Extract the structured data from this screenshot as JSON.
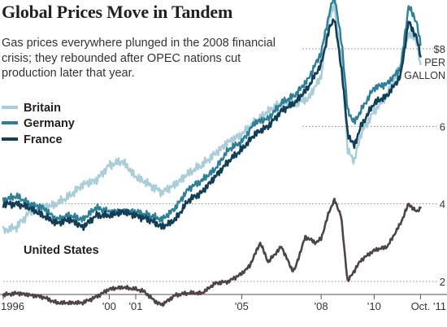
{
  "title": "Global Prices Move in Tandem",
  "subtitle": "Gas prices everywhere plunged in the 2008 financial crisis; they rebounded after OPEC nations cut production later that year.",
  "colors": {
    "britain": "#a9cdd9",
    "germany": "#2f8097",
    "france": "#123f58",
    "united_states": "#4e4446",
    "grid": "#888888",
    "axis": "#555555",
    "text": "#333333"
  },
  "chart_data": {
    "type": "line",
    "title": "Global Prices Move in Tandem",
    "subtitle": "Gas prices everywhere plunged in the 2008 financial crisis; they rebounded after OPEC nations cut production later that year.",
    "x_unit": "year",
    "xlim": [
      1996.0,
      2011.83
    ],
    "ylim": [
      1.0,
      9.5
    ],
    "y_unit": "$ per gallon",
    "y_ticks": [
      2,
      4,
      6,
      8
    ],
    "y_tick_labels": [
      "2",
      "4",
      "6",
      "$8"
    ],
    "y_unit_label": [
      "PER",
      "GALLON"
    ],
    "x_ticks": [
      1996,
      2000,
      2001,
      2005,
      2008,
      2010,
      2011.75
    ],
    "x_tick_labels": [
      "1996",
      "'00",
      "'01",
      "'05",
      "'08",
      "'10",
      "Oct. '11"
    ],
    "grid": "dotted horizontal lines at y ticks",
    "legend": "top-left",
    "series": [
      {
        "name": "Britain",
        "color": "#a9cdd9",
        "x": [
          1996.0,
          1996.5,
          1997.0,
          1997.5,
          1998.0,
          1998.5,
          1999.0,
          1999.5,
          2000.0,
          2000.5,
          2001.0,
          2001.5,
          2002.0,
          2002.5,
          2003.0,
          2003.5,
          2004.0,
          2004.5,
          2005.0,
          2005.5,
          2006.0,
          2006.5,
          2007.0,
          2007.5,
          2008.0,
          2008.3,
          2008.5,
          2008.8,
          2009.0,
          2009.25,
          2009.5,
          2010.0,
          2010.5,
          2011.0,
          2011.3,
          2011.6,
          2011.75
        ],
        "y": [
          3.3,
          3.4,
          3.8,
          3.9,
          4.0,
          4.2,
          4.5,
          4.6,
          5.0,
          5.1,
          4.7,
          4.5,
          4.3,
          4.5,
          4.8,
          5.0,
          5.3,
          5.6,
          5.8,
          6.1,
          6.4,
          6.6,
          6.6,
          6.7,
          7.3,
          8.8,
          9.1,
          7.5,
          5.4,
          5.1,
          5.8,
          6.4,
          6.8,
          7.6,
          8.4,
          8.2,
          7.6
        ]
      },
      {
        "name": "Germany",
        "color": "#2f8097",
        "x": [
          1996.0,
          1996.5,
          1997.0,
          1997.5,
          1998.0,
          1998.5,
          1999.0,
          1999.5,
          2000.0,
          2000.5,
          2001.0,
          2001.5,
          2002.0,
          2002.5,
          2003.0,
          2003.5,
          2004.0,
          2004.5,
          2005.0,
          2005.5,
          2006.0,
          2006.5,
          2007.0,
          2007.5,
          2008.0,
          2008.3,
          2008.5,
          2008.8,
          2009.0,
          2009.25,
          2009.5,
          2010.0,
          2010.5,
          2011.0,
          2011.3,
          2011.6,
          2011.75
        ],
        "y": [
          4.1,
          4.2,
          4.0,
          3.9,
          3.6,
          3.7,
          3.6,
          3.9,
          3.8,
          3.8,
          3.8,
          3.7,
          3.6,
          3.9,
          4.4,
          4.6,
          4.9,
          5.4,
          5.6,
          6.1,
          6.2,
          6.6,
          6.8,
          7.2,
          7.9,
          8.9,
          9.4,
          8.0,
          6.4,
          6.1,
          6.4,
          7.0,
          7.1,
          7.5,
          9.1,
          8.7,
          8.1
        ]
      },
      {
        "name": "France",
        "color": "#123f58",
        "x": [
          1996.0,
          1996.5,
          1997.0,
          1997.5,
          1998.0,
          1998.5,
          1999.0,
          1999.5,
          2000.0,
          2000.5,
          2001.0,
          2001.5,
          2002.0,
          2002.5,
          2003.0,
          2003.5,
          2004.0,
          2004.5,
          2005.0,
          2005.5,
          2006.0,
          2006.5,
          2007.0,
          2007.5,
          2008.0,
          2008.3,
          2008.5,
          2008.8,
          2009.0,
          2009.25,
          2009.5,
          2010.0,
          2010.5,
          2011.0,
          2011.3,
          2011.6,
          2011.75
        ],
        "y": [
          4.0,
          4.0,
          3.9,
          3.7,
          3.5,
          3.6,
          3.4,
          3.7,
          3.7,
          3.8,
          3.7,
          3.6,
          3.4,
          3.6,
          4.1,
          4.3,
          4.7,
          5.1,
          5.4,
          5.8,
          6.0,
          6.4,
          6.6,
          7.0,
          7.6,
          8.5,
          8.8,
          7.3,
          5.8,
          5.5,
          6.0,
          6.6,
          6.8,
          7.3,
          8.7,
          8.3,
          7.8
        ]
      },
      {
        "name": "United States",
        "color": "#4e4446",
        "x": [
          1996.0,
          1996.5,
          1997.0,
          1997.5,
          1998.0,
          1998.5,
          1999.0,
          1999.5,
          2000.0,
          2000.5,
          2001.0,
          2001.3,
          2001.8,
          2002.0,
          2002.5,
          2003.0,
          2003.5,
          2004.0,
          2004.5,
          2005.0,
          2005.3,
          2005.7,
          2006.0,
          2006.5,
          2006.9,
          2007.0,
          2007.4,
          2007.8,
          2008.0,
          2008.3,
          2008.5,
          2008.75,
          2009.0,
          2009.5,
          2010.0,
          2010.5,
          2011.0,
          2011.3,
          2011.6,
          2011.75
        ],
        "y": [
          1.65,
          1.7,
          1.65,
          1.6,
          1.45,
          1.45,
          1.45,
          1.6,
          1.8,
          1.85,
          1.8,
          1.75,
          1.45,
          1.4,
          1.65,
          1.7,
          1.7,
          1.95,
          2.0,
          2.2,
          2.4,
          3.0,
          2.5,
          2.9,
          2.3,
          2.3,
          3.15,
          3.0,
          3.1,
          3.8,
          4.1,
          3.7,
          2.0,
          2.55,
          2.8,
          2.9,
          3.5,
          4.0,
          3.8,
          3.9
        ]
      }
    ],
    "labels": {
      "britain": "Britain",
      "germany": "Germany",
      "france": "France",
      "united_states": "United States"
    }
  }
}
